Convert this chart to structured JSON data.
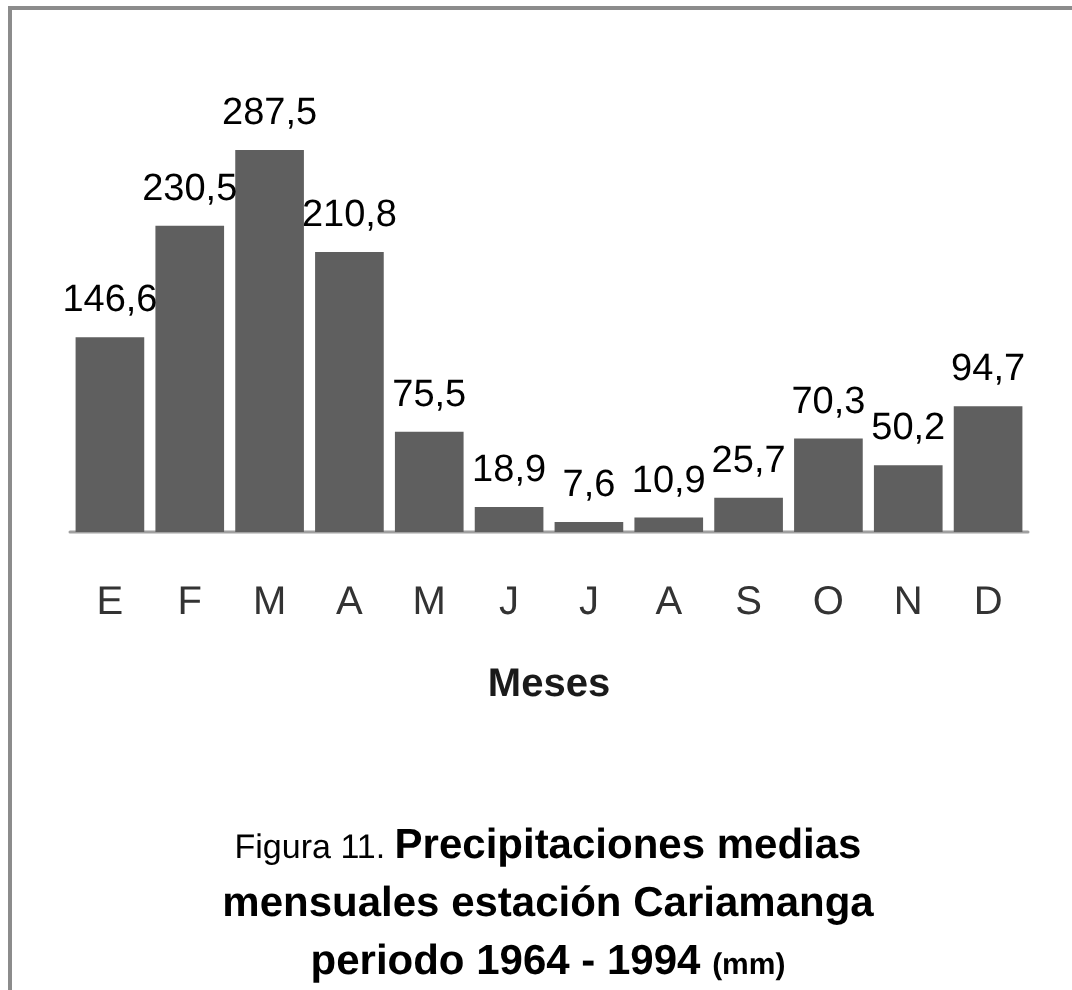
{
  "chart_data": {
    "type": "bar",
    "title": "Figura 11. Precipitaciones medias mensuales estación Cariamanga periodo 1964 - 1994 (mm)",
    "xlabel": "Meses",
    "categories": [
      "E",
      "F",
      "M",
      "A",
      "M",
      "J",
      "J",
      "A",
      "S",
      "O",
      "N",
      "D"
    ],
    "values": [
      146.6,
      230.5,
      287.5,
      210.8,
      75.5,
      18.9,
      7.6,
      10.9,
      25.7,
      70.3,
      50.2,
      94.7
    ],
    "value_labels": [
      "146,6",
      "230,5",
      "287,5",
      "210,8",
      "75,5",
      "18,9",
      "7,6",
      "10,9",
      "25,7",
      "70,3",
      "50,2",
      "94,7"
    ],
    "color": "#5f5f5f",
    "tick_labels": "x",
    "grid": false
  }
}
